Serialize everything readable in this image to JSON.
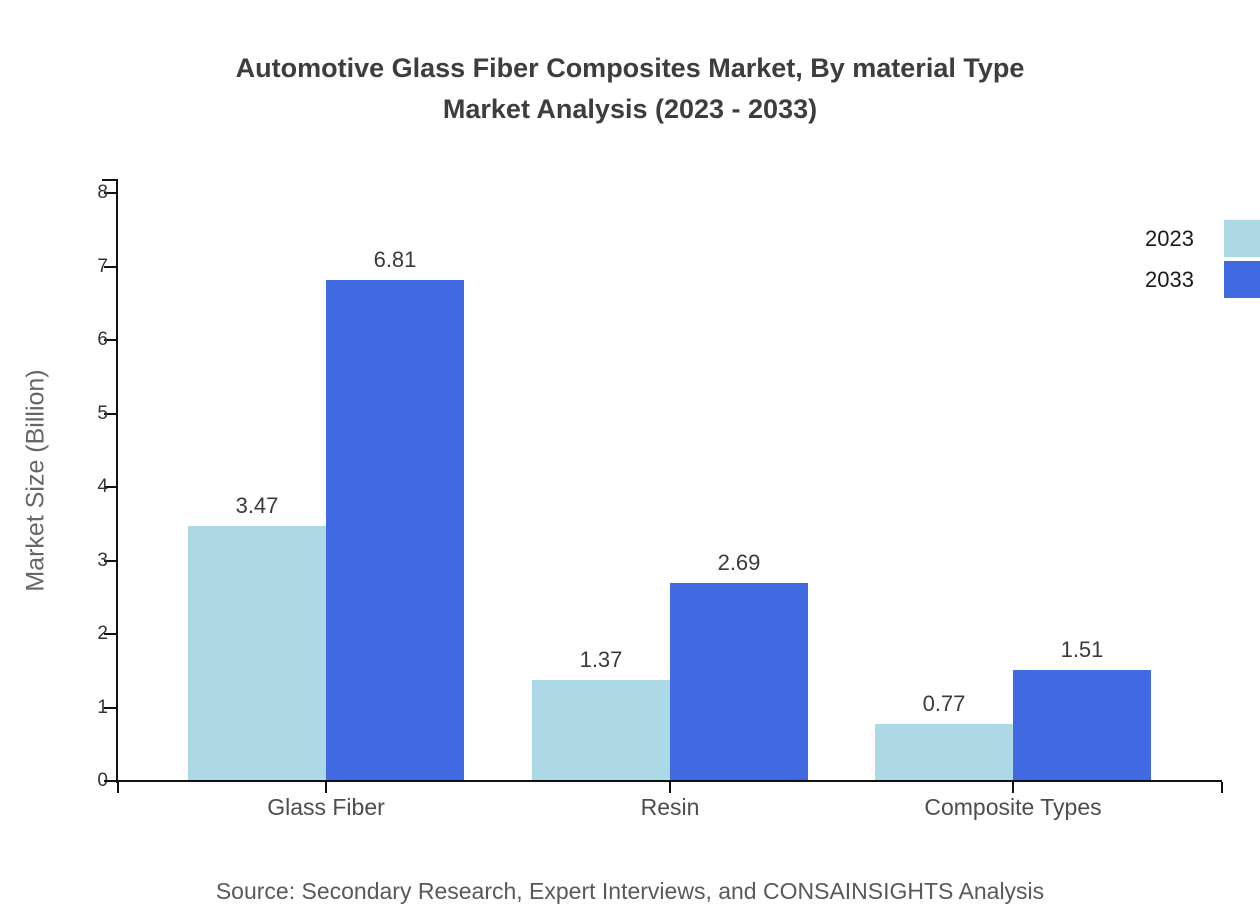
{
  "title": {
    "line1": "Automotive Glass Fiber Composites Market, By material Type",
    "line2": "Market Analysis (2023 - 2033)"
  },
  "chart_data": {
    "type": "bar",
    "title": "Automotive Glass Fiber Composites Market, By material Type Market Analysis (2023 - 2033)",
    "categories": [
      "Glass Fiber",
      "Resin",
      "Composite Types"
    ],
    "series": [
      {
        "name": "2023",
        "color": "#ADD8E6",
        "values": [
          3.47,
          1.37,
          0.77
        ]
      },
      {
        "name": "2033",
        "color": "#4169E1",
        "values": [
          6.81,
          2.69,
          1.51
        ]
      }
    ],
    "xlabel": "",
    "ylabel": "Market Size (Billion)",
    "ylim": [
      0,
      8
    ],
    "yticks": [
      0,
      1,
      2,
      3,
      4,
      5,
      6,
      7,
      8
    ],
    "grid": false,
    "legend_position": "top-right",
    "value_label_format": "0.00"
  },
  "source": {
    "text": "Source: Secondary Research, Expert Interviews, and CONSAINSIGHTS Analysis"
  },
  "colors": {
    "axis": "#111111",
    "title_text": "#3d3d3d",
    "tick_text": "#333333",
    "category_text": "#4d4d4d",
    "source_text": "#595959"
  }
}
